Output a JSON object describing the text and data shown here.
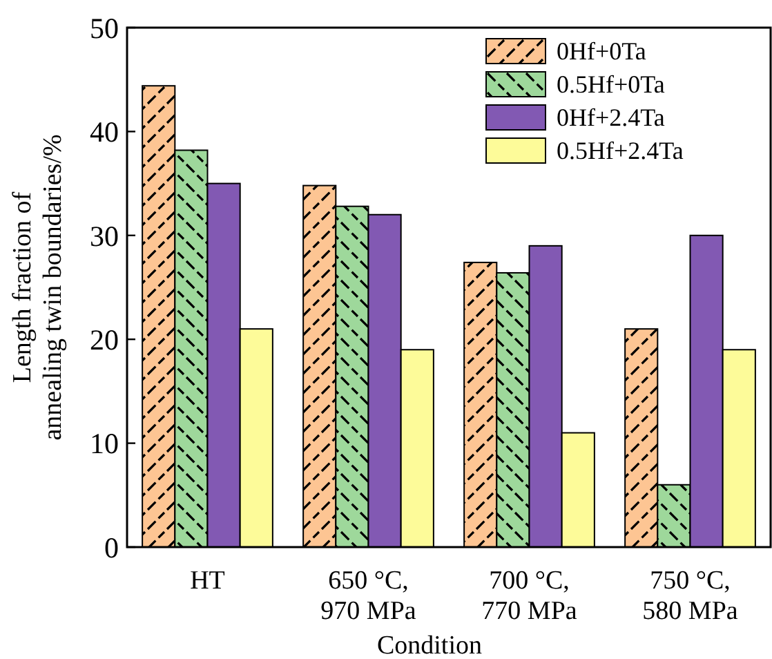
{
  "chart_data": {
    "type": "bar",
    "xlabel": "Condition",
    "ylabel": "Length fraction of\nannealing twin boundaries/%",
    "categories": [
      "HT",
      "650 °C,\n970 MPa",
      "700 °C,\n770 MPa",
      "750 °C,\n580 MPa"
    ],
    "series": [
      {
        "name": "0Hf+0Ta",
        "color": "#fdc593",
        "values": [
          44.4,
          34.8,
          27.4,
          21
        ]
      },
      {
        "name": "0.5Hf+0Ta",
        "color": "#9ed89b",
        "values": [
          38.2,
          32.8,
          26.4,
          6
        ]
      },
      {
        "name": "0Hf+2.4Ta",
        "color": "#8259b3",
        "values": [
          35,
          32,
          29,
          30
        ]
      },
      {
        "name": "0.5Hf+2.4Ta",
        "color": "#fdfb99",
        "values": [
          21,
          19,
          11,
          19
        ]
      }
    ],
    "ylim": [
      0,
      50
    ],
    "yticks": [
      0,
      10,
      20,
      30,
      40,
      50
    ],
    "grid": false,
    "legend": "top right"
  }
}
